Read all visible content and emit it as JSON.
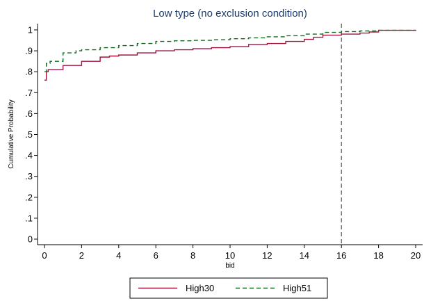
{
  "chart_data": {
    "type": "line",
    "step": true,
    "title": "Low type (no exclusion condition)",
    "xlabel": "bid",
    "ylabel": "Cumulative Probability",
    "xlim": [
      0,
      20
    ],
    "ylim": [
      0,
      1
    ],
    "xticks": [
      0,
      2,
      4,
      6,
      8,
      10,
      12,
      14,
      16,
      18,
      20
    ],
    "xtick_labels": [
      "0",
      "2",
      "4",
      "6",
      "8",
      "10",
      "12",
      "14",
      "16",
      "18",
      "20"
    ],
    "yticks": [
      0,
      0.1,
      0.2,
      0.3,
      0.4,
      0.5,
      0.6,
      0.7,
      0.8,
      0.9,
      1
    ],
    "ytick_labels": [
      "0",
      ".1",
      ".2",
      ".3",
      ".4",
      ".5",
      ".6",
      ".7",
      ".8",
      ".9",
      "1"
    ],
    "grid": false,
    "legend_position": "bottom",
    "reference_lines": [
      {
        "axis": "x",
        "value": 16,
        "style": "dashed",
        "color": "#555555"
      }
    ],
    "series": [
      {
        "name": "High30",
        "color": "#a0143c",
        "dash": "solid",
        "x": [
          0,
          0.1,
          0.2,
          1,
          2,
          3,
          3.5,
          4,
          5,
          6,
          7,
          8,
          9,
          10,
          11,
          12,
          13,
          14,
          14.5,
          15,
          16,
          17,
          17.5,
          18,
          20
        ],
        "y": [
          0.76,
          0.8,
          0.81,
          0.83,
          0.85,
          0.87,
          0.875,
          0.88,
          0.89,
          0.9,
          0.905,
          0.91,
          0.915,
          0.92,
          0.93,
          0.935,
          0.945,
          0.955,
          0.965,
          0.975,
          0.98,
          0.985,
          0.99,
          0.998,
          1.0
        ]
      },
      {
        "name": "High51",
        "color": "#0f6a1e",
        "dash": "dashed",
        "x": [
          0,
          0.1,
          0.3,
          1,
          1.7,
          2,
          3,
          4,
          5,
          6,
          7,
          8,
          9,
          10,
          11,
          12,
          13,
          14,
          15,
          16,
          17,
          18,
          20
        ],
        "y": [
          0.8,
          0.84,
          0.85,
          0.89,
          0.9,
          0.905,
          0.915,
          0.925,
          0.935,
          0.945,
          0.948,
          0.95,
          0.953,
          0.958,
          0.962,
          0.967,
          0.972,
          0.98,
          0.988,
          0.992,
          0.995,
          0.998,
          1.0
        ]
      }
    ]
  }
}
